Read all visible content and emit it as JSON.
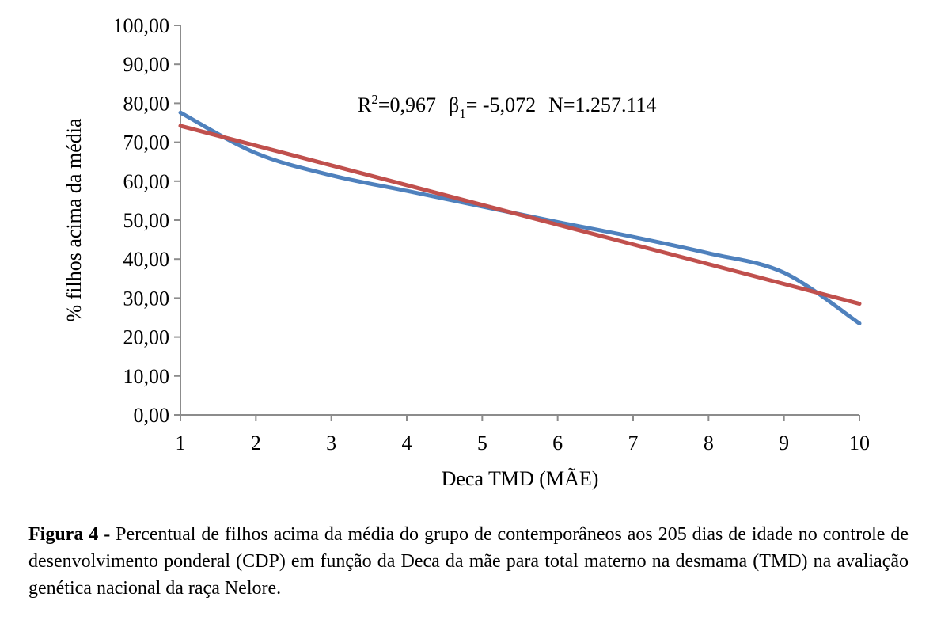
{
  "chart_data": {
    "type": "line",
    "xlabel": "Deca TMD (MÃE)",
    "ylabel": "% filhos acima da média",
    "x": [
      1,
      2,
      3,
      4,
      5,
      6,
      7,
      8,
      9,
      10
    ],
    "x_tick_labels": [
      "1",
      "2",
      "3",
      "4",
      "5",
      "6",
      "7",
      "8",
      "9",
      "10"
    ],
    "ylim": [
      0,
      100
    ],
    "y_ticks": [
      0,
      10,
      20,
      30,
      40,
      50,
      60,
      70,
      80,
      90,
      100
    ],
    "y_tick_labels": [
      "0,00",
      "10,00",
      "20,00",
      "30,00",
      "40,00",
      "50,00",
      "60,00",
      "70,00",
      "80,00",
      "90,00",
      "100,00"
    ],
    "series": [
      {
        "values": [
          77.6,
          67.2,
          61.5,
          57.5,
          53.5,
          49.5,
          45.7,
          41.5,
          36.5,
          23.5
        ],
        "color": "#4F81BD"
      },
      {
        "values": [
          74.2,
          69.13,
          64.06,
          58.98,
          53.91,
          48.84,
          43.77,
          38.7,
          33.62,
          28.55
        ],
        "color": "#C0504D"
      }
    ],
    "annotation": {
      "r2_prefix": "R",
      "r2_sup": "2",
      "r2_value": "=0,967",
      "beta_symbol": "β",
      "beta_sub": "1",
      "beta_value": "= -5,072",
      "n_text": "N=1.257.114"
    },
    "grid": false,
    "legend": "none"
  },
  "caption": {
    "label": "Figura 4 -",
    "text": "Percentual de filhos acima da média do grupo de contemporâneos aos 205 dias de idade no controle de desenvolvimento ponderal (CDP) em função da Deca da mãe para total materno na desmama (TMD) na avaliação genética nacional da raça Nelore."
  }
}
